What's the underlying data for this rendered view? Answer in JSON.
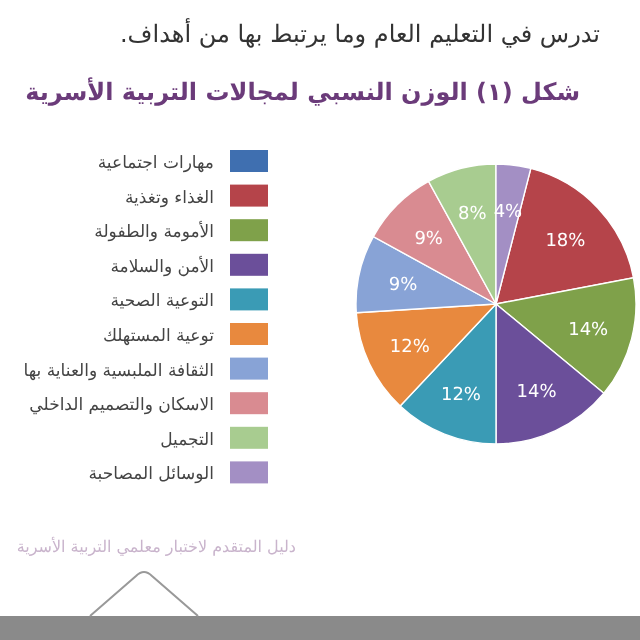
{
  "chart_data": {
    "type": "pie",
    "title": "شكل (١) الوزن النسبي لمجالات التربية الأسرية",
    "categories": [
      "مهارات اجتماعية",
      "الغذاء وتغذية",
      "الأمومة والطفولة",
      "الأمن والسلامة",
      "التوعية الصحية",
      "توعية المستهلك",
      "الثقافة الملبسية والعناية بها",
      "الاسكان والتصميم الداخلي",
      "التجميل",
      "الوسائل المصاحبة"
    ],
    "values": [
      0,
      18,
      14,
      14,
      12,
      12,
      9,
      9,
      8,
      4
    ],
    "value_labels": [
      null,
      "18%",
      "14%",
      "14%",
      "12%",
      "12%",
      "9%",
      "9%",
      "8%",
      "4%"
    ],
    "colors": [
      "#3f6fb0",
      "#b5444a",
      "#7fa14a",
      "#6b4f9a",
      "#3a9bb5",
      "#e8893e",
      "#88a3d6",
      "#d98b91",
      "#a8cc90",
      "#a38fc4"
    ],
    "legend": "left",
    "annotations": [
      "تدرس في التعليم العام وما يرتبط بها من أهداف.",
      "دليل المتقدم لاختبار معلمي التربية الأسرية"
    ]
  }
}
